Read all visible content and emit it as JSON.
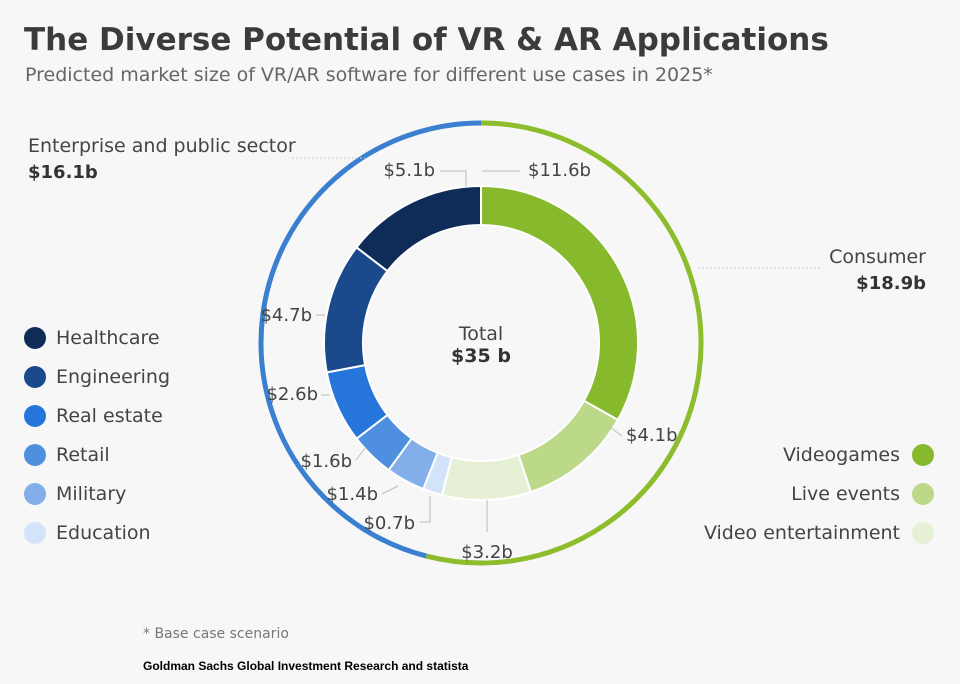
{
  "header": {
    "title": "The Diverse Potential of VR & AR Applications",
    "subtitle": "Predicted market size of VR/AR software for different use cases in 2025*"
  },
  "chart_data": {
    "type": "donut",
    "center_label": {
      "line1": "Total",
      "line2": "$35 b"
    },
    "segments": [
      {
        "name": "Videogames",
        "value": 11.6,
        "label": "$11.6b",
        "color": "#86b92b",
        "group": "Consumer"
      },
      {
        "name": "Live events",
        "value": 4.1,
        "label": "$4.1b",
        "color": "#bcd98a",
        "group": "Consumer"
      },
      {
        "name": "Video entertainment",
        "value": 3.2,
        "label": "$3.2b",
        "color": "#e6f0d6",
        "group": "Consumer"
      },
      {
        "name": "Education",
        "value": 0.7,
        "label": "$0.7b",
        "color": "#d2e3fa",
        "group": "Enterprise and public sector"
      },
      {
        "name": "Military",
        "value": 1.4,
        "label": "$1.4b",
        "color": "#82aeea",
        "group": "Enterprise and public sector"
      },
      {
        "name": "Retail",
        "value": 1.6,
        "label": "$1.6b",
        "color": "#4f8fe0",
        "group": "Enterprise and public sector"
      },
      {
        "name": "Real estate",
        "value": 2.6,
        "label": "$2.6b",
        "color": "#2575db",
        "group": "Enterprise and public sector"
      },
      {
        "name": "Engineering",
        "value": 4.7,
        "label": "$4.7b",
        "color": "#1b4a8c",
        "group": "Enterprise and public sector"
      },
      {
        "name": "Healthcare",
        "value": 5.1,
        "label": "$5.1b",
        "color": "#0f2c58",
        "group": "Enterprise and public sector"
      }
    ],
    "groups": [
      {
        "name": "Consumer",
        "label": "Consumer",
        "value_label": "$18.9b",
        "value": 18.9,
        "color": "#8dbd2c"
      },
      {
        "name": "Enterprise and public sector",
        "label": "Enterprise and public sector",
        "value_label": "$16.1b",
        "value": 16.1,
        "color": "#3a7fd0"
      }
    ],
    "legend_left": [
      "Healthcare",
      "Engineering",
      "Real estate",
      "Retail",
      "Military",
      "Education"
    ],
    "legend_right": [
      "Videogames",
      "Live events",
      "Video entertainment"
    ]
  },
  "footer": {
    "footnote": "* Base case scenario",
    "source": "Goldman Sachs Global Investment Research and statista"
  }
}
